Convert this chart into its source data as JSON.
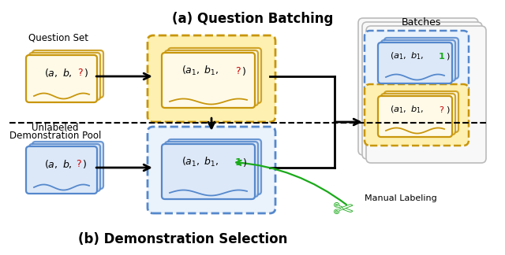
{
  "title_a": "(a) Question Batching",
  "title_b": "(b) Demonstration Selection",
  "label_question_set": "Question Set",
  "label_unlabeled_1": "Unlabeled",
  "label_unlabeled_2": "Demonstration Pool",
  "label_batches": "Batches",
  "label_manual": "Manual Labeling",
  "color_yellow_fill": "#FFFAE8",
  "color_yellow_border": "#C8960C",
  "color_yellow_light": "#FDF0B0",
  "color_blue_fill": "#DCE8F8",
  "color_blue_border": "#5588CC",
  "color_blue_light": "#EAF2FC",
  "color_grey_fill": "#F8F8F8",
  "color_grey_border": "#BBBBBB",
  "color_green": "#1AAA1A",
  "color_red": "#CC0000",
  "color_black": "#000000",
  "bg_color": "#FFFFFF"
}
